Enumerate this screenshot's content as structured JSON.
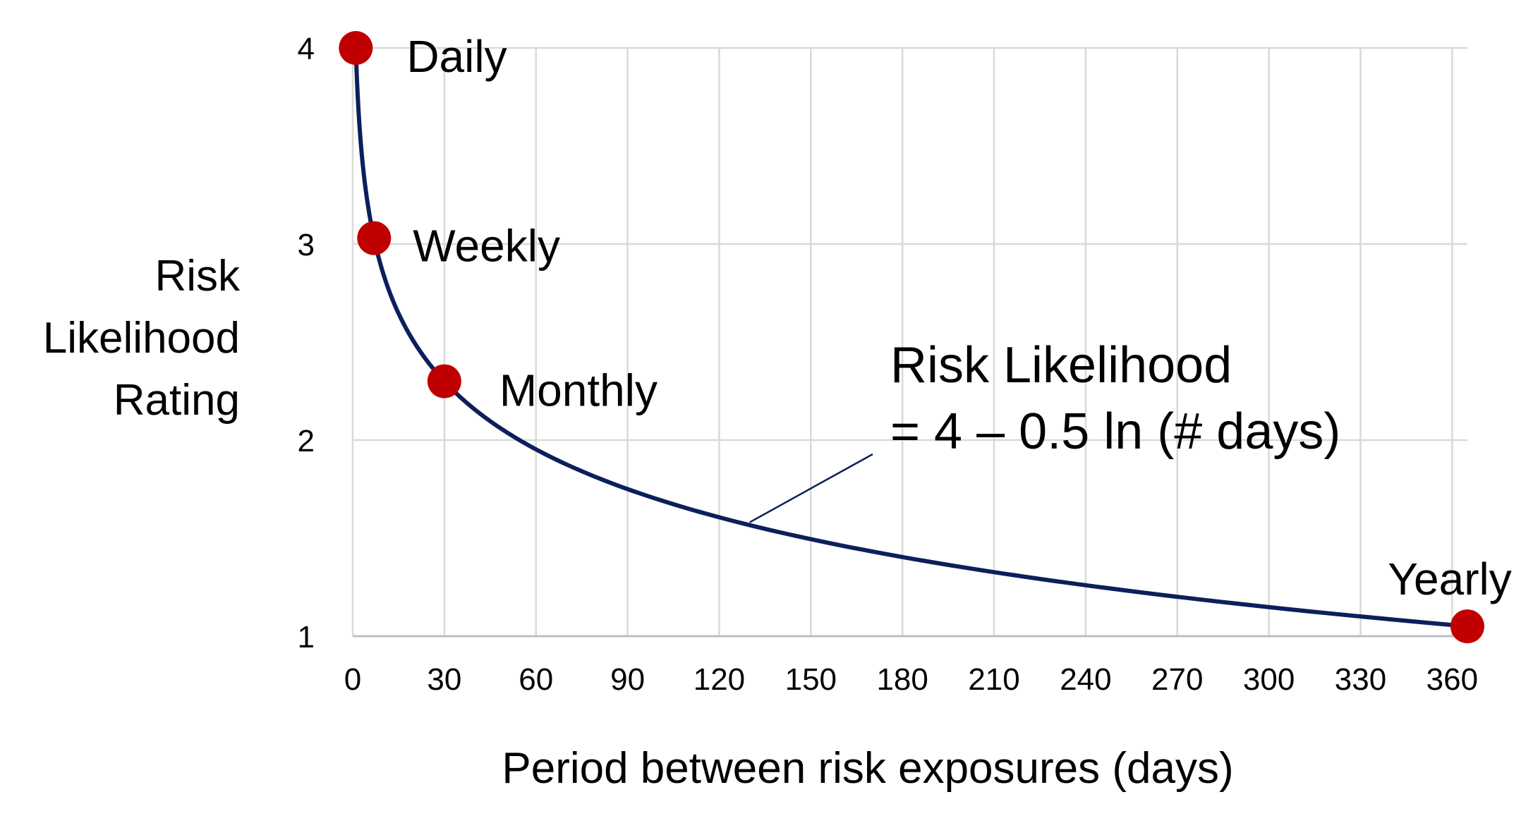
{
  "chart_data": {
    "type": "line",
    "title": "",
    "xlabel": "Period between risk exposures (days)",
    "ylabel": "Risk Likelihood Rating",
    "ylabel_lines": [
      "Risk",
      "Likelihood",
      "Rating"
    ],
    "xlim": [
      0,
      365
    ],
    "ylim": [
      1,
      4
    ],
    "x_ticks": [
      0,
      30,
      60,
      90,
      120,
      150,
      180,
      210,
      240,
      270,
      300,
      330,
      360
    ],
    "y_ticks": [
      1,
      2,
      3,
      4
    ],
    "grid": true,
    "series": [
      {
        "formula": "4 - 0.5 ln(x)",
        "x_range": [
          1,
          365
        ],
        "color": "#0c1f5c"
      }
    ],
    "points": [
      {
        "label": "Daily",
        "x": 1,
        "y": 4.0
      },
      {
        "label": "Weekly",
        "x": 7,
        "y": 3.03
      },
      {
        "label": "Monthly",
        "x": 30,
        "y": 2.3
      },
      {
        "label": "Yearly",
        "x": 365,
        "y": 1.05
      }
    ],
    "point_color": "#c00000",
    "grid_color": "#d9d9d9",
    "annotation": {
      "lines": [
        "Risk Likelihood",
        "= 4 – 0.5 ln (# days)"
      ],
      "points_to_x": 130
    }
  }
}
